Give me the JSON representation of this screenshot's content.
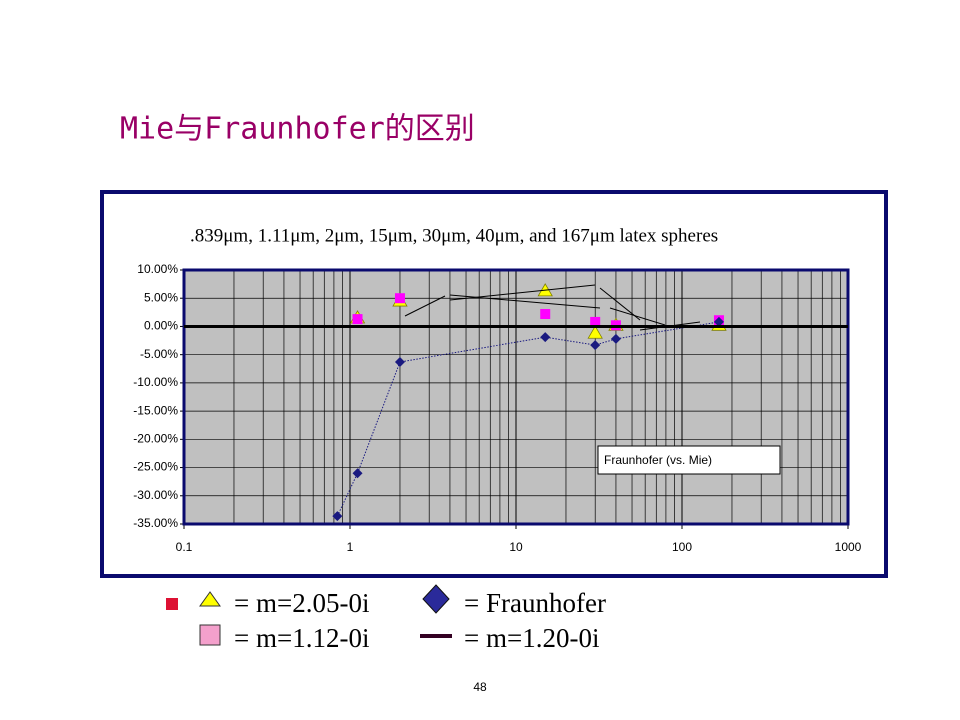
{
  "page_title": "Mie与Fraunhofer的区别",
  "page_number": "48",
  "chart_data": {
    "type": "scatter",
    "title": ".839μm, 1.11μm, 2μm, 15μm, 30μm, 40μm, and 167μm latex spheres",
    "annotation": "Fraunhofer (vs. Mie)",
    "x_scale": "log",
    "xlim": [
      0.1,
      1000
    ],
    "xticks": [
      0.1,
      1,
      10,
      100,
      1000
    ],
    "ylim": [
      -35,
      10
    ],
    "yticks": [
      {
        "value": 10,
        "label": "10.00%"
      },
      {
        "value": 5,
        "label": "5.00%"
      },
      {
        "value": 0,
        "label": "0.00%"
      },
      {
        "value": -5,
        "label": "-5.00%"
      },
      {
        "value": -10,
        "label": "-10.00%"
      },
      {
        "value": -15,
        "label": "-15.00%"
      },
      {
        "value": -20,
        "label": "-20.00%"
      },
      {
        "value": -25,
        "label": "-25.00%"
      },
      {
        "value": -30,
        "label": "-30.00%"
      },
      {
        "value": -35,
        "label": "-35.00%"
      }
    ],
    "grid": true,
    "series": [
      {
        "name": "= m=2.05-0i",
        "color": "#ffff00",
        "marker": "triangle",
        "x": [
          1.11,
          2,
          15,
          30,
          40,
          167
        ],
        "values": [
          1.5,
          4.5,
          6.3,
          -1.2,
          0.2,
          0.2
        ]
      },
      {
        "name": "= m=1.12-0i",
        "color": "#ff00ff",
        "marker": "square",
        "x": [
          1.11,
          2,
          15,
          30,
          40,
          167
        ],
        "values": [
          1.3,
          5.0,
          2.2,
          0.8,
          0.2,
          1.1
        ]
      },
      {
        "name": "= Fraunhofer",
        "color": "#1a1a80",
        "marker": "diamond",
        "line": "dotted",
        "x": [
          0.839,
          1.11,
          2,
          15,
          30,
          40,
          167
        ],
        "values": [
          -33.6,
          -26,
          -6.3,
          -1.9,
          -3.3,
          -2.2,
          0.8
        ]
      },
      {
        "name": "= m=1.20-0i",
        "color": "#000000",
        "marker": "none",
        "line": "solid",
        "x": [
          0.1,
          1000
        ],
        "values": [
          0,
          0
        ]
      }
    ]
  }
}
